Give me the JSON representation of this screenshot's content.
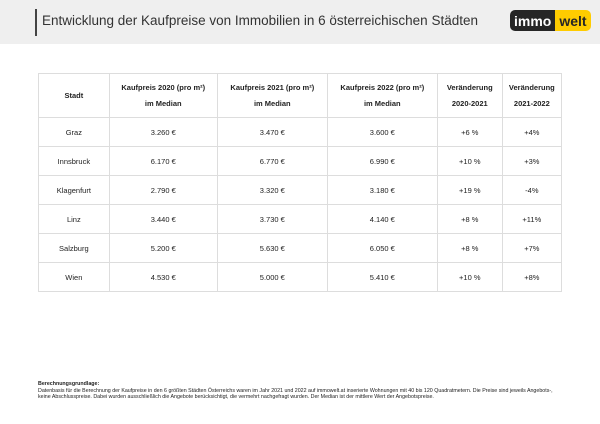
{
  "header": {
    "title": "Entwicklung der Kaufpreise von Immobilien in 6 österreichischen Städten",
    "logo": [
      "immo",
      "welt"
    ]
  },
  "table": {
    "headers": [
      [
        "Stadt"
      ],
      [
        "Kaufpreis 2020 (pro m²)",
        "im Median"
      ],
      [
        "Kaufpreis 2021 (pro m²)",
        "im Median"
      ],
      [
        "Kaufpreis 2022 (pro m²)",
        "im Median"
      ],
      [
        "Veränderung",
        "2020-2021"
      ],
      [
        "Veränderung",
        "2021-2022"
      ]
    ],
    "rows": [
      [
        "Graz",
        "3.260 €",
        "3.470 €",
        "3.600 €",
        "+6 %",
        "+4%"
      ],
      [
        "Innsbruck",
        "6.170 €",
        "6.770 €",
        "6.990 €",
        "+10 %",
        "+3%"
      ],
      [
        "Klagenfurt",
        "2.790 €",
        "3.320 €",
        "3.180 €",
        "+19 %",
        "-4%"
      ],
      [
        "Linz",
        "3.440 €",
        "3.730 €",
        "4.140 €",
        "+8 %",
        "+11%"
      ],
      [
        "Salzburg",
        "5.200 €",
        "5.630 €",
        "6.050 €",
        "+8 %",
        "+7%"
      ],
      [
        "Wien",
        "4.530 €",
        "5.000 €",
        "5.410 €",
        "+10 %",
        "+8%"
      ]
    ]
  },
  "footnote": {
    "heading": "Berechnungsgrundlage:",
    "text": "Datenbasis für die Berechnung der Kaufpreise in den 6 größten Städten Österreichs waren im Jahr 2021 und 2022 auf immowelt.at inserierte Wohnungen mit 40 bis 120 Quadratmetern. Die Preise sind jeweils Angebots-, keine Abschlusspreise. Dabei wurden ausschließlich die Angebote berücksichtigt, die vermehrt nachgefragt wurden. Der Median ist der mittlere Wert der Angebotspreise."
  }
}
